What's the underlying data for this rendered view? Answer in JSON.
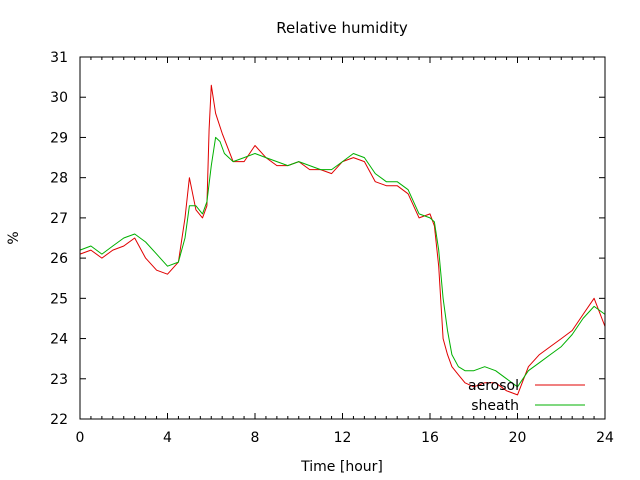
{
  "chart_data": {
    "type": "line",
    "title": "Relative humidity",
    "xlabel": "Time [hour]",
    "ylabel": "%",
    "xlim": [
      0,
      24
    ],
    "ylim": [
      22,
      31
    ],
    "x_ticks": [
      0,
      4,
      8,
      12,
      16,
      20,
      24
    ],
    "y_ticks": [
      22,
      23,
      24,
      25,
      26,
      27,
      28,
      29,
      30,
      31
    ],
    "grid": false,
    "legend_position": "bottom-right",
    "series": [
      {
        "name": "aerosol",
        "color": "#e00000",
        "x": [
          0,
          0.5,
          1,
          1.5,
          2,
          2.5,
          3,
          3.5,
          4,
          4.5,
          4.8,
          5,
          5.3,
          5.6,
          5.8,
          5.9,
          6,
          6.2,
          6.5,
          7,
          7.5,
          8,
          8.5,
          9,
          9.5,
          10,
          10.5,
          11,
          11.5,
          12,
          12.5,
          13,
          13.5,
          14,
          14.5,
          15,
          15.5,
          16,
          16.2,
          16.4,
          16.6,
          16.8,
          17,
          17.3,
          17.6,
          18,
          18.5,
          19,
          19.5,
          20,
          20.5,
          21,
          21.5,
          22,
          22.5,
          23,
          23.5,
          24
        ],
        "values": [
          26.1,
          26.2,
          26.0,
          26.2,
          26.3,
          26.5,
          26.0,
          25.7,
          25.6,
          25.9,
          27.0,
          28.0,
          27.2,
          27.0,
          27.3,
          29.2,
          30.3,
          29.6,
          29.1,
          28.4,
          28.4,
          28.8,
          28.5,
          28.3,
          28.3,
          28.4,
          28.2,
          28.2,
          28.1,
          28.4,
          28.5,
          28.4,
          27.9,
          27.8,
          27.8,
          27.6,
          27.0,
          27.1,
          26.8,
          25.8,
          24.0,
          23.6,
          23.3,
          23.1,
          22.9,
          22.8,
          22.9,
          22.9,
          22.7,
          22.6,
          23.3,
          23.6,
          23.8,
          24.0,
          24.2,
          24.6,
          25.0,
          24.3
        ]
      },
      {
        "name": "sheath",
        "color": "#00b000",
        "x": [
          0,
          0.5,
          1,
          1.5,
          2,
          2.5,
          3,
          3.5,
          4,
          4.5,
          4.8,
          5,
          5.3,
          5.6,
          5.8,
          6,
          6.2,
          6.4,
          6.6,
          7,
          7.5,
          8,
          8.5,
          9,
          9.5,
          10,
          10.5,
          11,
          11.5,
          12,
          12.5,
          13,
          13.5,
          14,
          14.5,
          15,
          15.5,
          16,
          16.2,
          16.4,
          16.6,
          16.8,
          17,
          17.3,
          17.6,
          18,
          18.5,
          19,
          19.5,
          20,
          20.5,
          21,
          21.5,
          22,
          22.5,
          23,
          23.5,
          24
        ],
        "values": [
          26.2,
          26.3,
          26.1,
          26.3,
          26.5,
          26.6,
          26.4,
          26.1,
          25.8,
          25.9,
          26.5,
          27.3,
          27.3,
          27.1,
          27.4,
          28.3,
          29.0,
          28.9,
          28.6,
          28.4,
          28.5,
          28.6,
          28.5,
          28.4,
          28.3,
          28.4,
          28.3,
          28.2,
          28.2,
          28.4,
          28.6,
          28.5,
          28.1,
          27.9,
          27.9,
          27.7,
          27.1,
          27.0,
          26.9,
          26.2,
          25.0,
          24.2,
          23.6,
          23.3,
          23.2,
          23.2,
          23.3,
          23.2,
          23.0,
          22.8,
          23.2,
          23.4,
          23.6,
          23.8,
          24.1,
          24.5,
          24.8,
          24.6
        ]
      }
    ]
  }
}
